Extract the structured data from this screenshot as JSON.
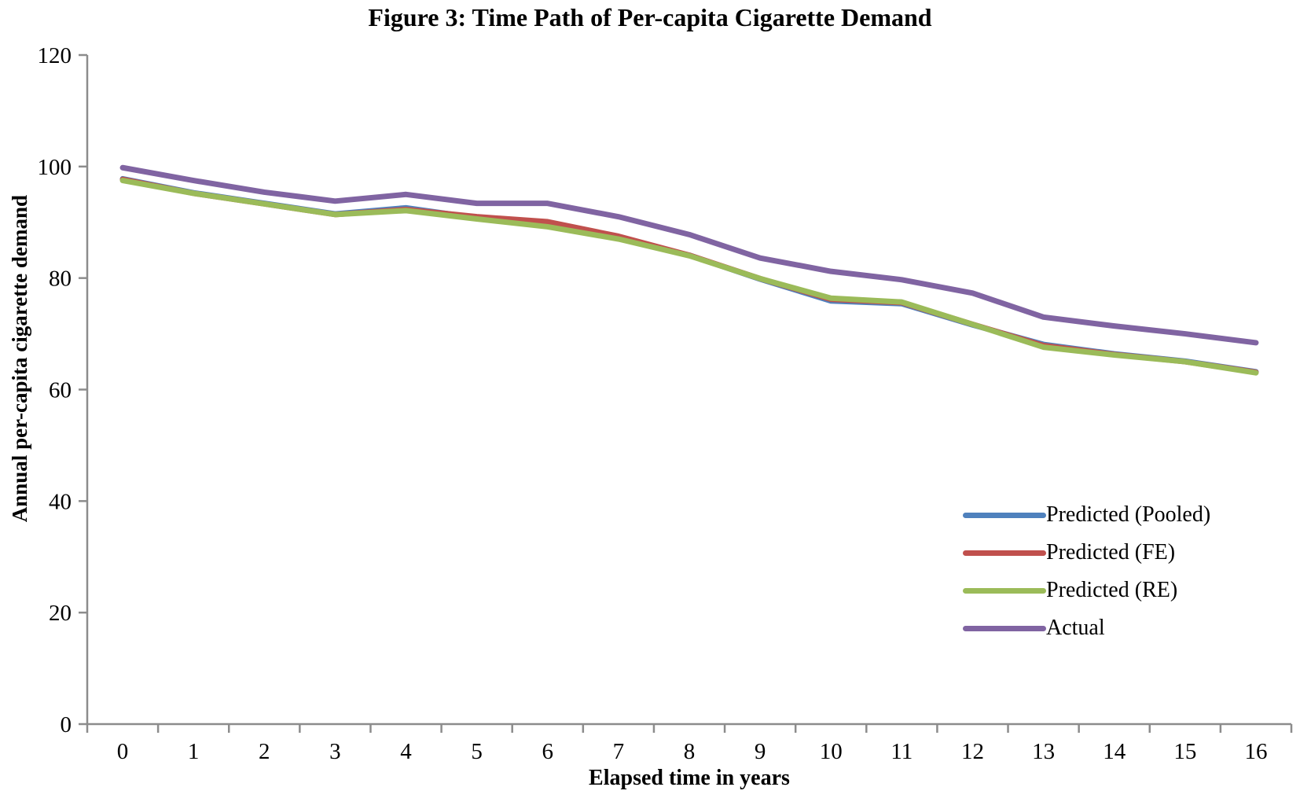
{
  "chart_data": {
    "type": "line",
    "title": "Figure 3: Time Path of Per-capita Cigarette Demand",
    "xlabel": "Elapsed time in years",
    "ylabel": "Annual per-capita cigarette demand",
    "x": [
      0,
      1,
      2,
      3,
      4,
      5,
      6,
      7,
      8,
      9,
      10,
      11,
      12,
      13,
      14,
      15,
      16
    ],
    "xtick_labels": [
      "0",
      "1",
      "2",
      "3",
      "4",
      "5",
      "6",
      "7",
      "8",
      "9",
      "10",
      "11",
      "12",
      "13",
      "14",
      "15",
      "16"
    ],
    "ylim": [
      0,
      120
    ],
    "yticks": [
      0,
      20,
      40,
      60,
      80,
      100,
      120
    ],
    "grid": false,
    "legend_position": "middle-right",
    "axis_color": "#8C8C8C",
    "line_width": 7,
    "series": [
      {
        "name": "Predicted (Pooled)",
        "color": "#4F81BD",
        "values": [
          97.8,
          95.3,
          93.4,
          91.5,
          92.6,
          90.8,
          89.8,
          87.2,
          84.1,
          79.8,
          75.9,
          75.4,
          71.6,
          68.1,
          66.4,
          65.1,
          63.2
        ]
      },
      {
        "name": "Predicted (FE)",
        "color": "#C0504D",
        "values": [
          97.7,
          95.2,
          93.3,
          91.4,
          92.3,
          91.0,
          90.1,
          87.5,
          84.1,
          79.9,
          76.2,
          75.6,
          71.7,
          67.9,
          66.3,
          65.0,
          63.1
        ]
      },
      {
        "name": "Predicted (RE)",
        "color": "#9BBB59",
        "values": [
          97.5,
          95.2,
          93.3,
          91.4,
          92.1,
          90.6,
          89.2,
          87.0,
          84.0,
          79.9,
          76.4,
          75.7,
          71.7,
          67.6,
          66.2,
          65.0,
          63.0
        ]
      },
      {
        "name": "Actual",
        "color": "#8064A2",
        "values": [
          99.8,
          97.5,
          95.4,
          93.8,
          95.0,
          93.4,
          93.4,
          91.0,
          87.8,
          83.6,
          81.2,
          79.7,
          77.3,
          73.0,
          71.4,
          70.0,
          68.4
        ]
      }
    ]
  }
}
